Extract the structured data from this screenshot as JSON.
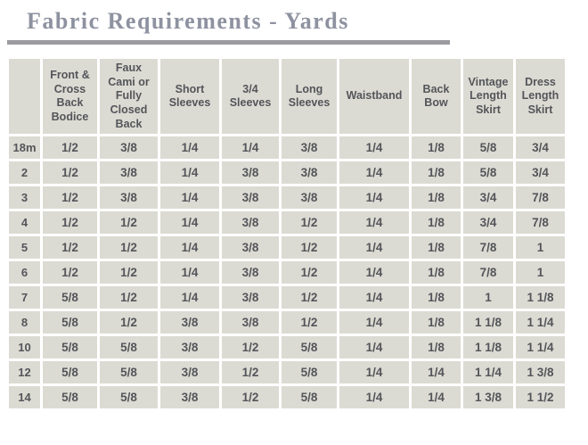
{
  "page": {
    "title": "Fabric Requirements - Yards"
  },
  "colors": {
    "page_bg": "#ffffff",
    "cell_bg": "#dcdbd3",
    "text": "#54555a",
    "title": "#8e92a0",
    "divider": "#9b9ba0"
  },
  "table": {
    "columns": [
      "",
      "Front & Cross Back Bodice",
      "Faux Cami or Fully Closed Back",
      "Short Sleeves",
      "3/4 Sleeves",
      "Long Sleeves",
      "Waistband",
      "Back Bow",
      "Vintage Length Skirt",
      "Dress Length Skirt"
    ],
    "rows": [
      {
        "label": "18m",
        "values": [
          "1/2",
          "3/8",
          "1/4",
          "1/4",
          "3/8",
          "1/4",
          "1/8",
          "5/8",
          "3/4"
        ]
      },
      {
        "label": "2",
        "values": [
          "1/2",
          "3/8",
          "1/4",
          "3/8",
          "3/8",
          "1/4",
          "1/8",
          "5/8",
          "3/4"
        ]
      },
      {
        "label": "3",
        "values": [
          "1/2",
          "3/8",
          "1/4",
          "3/8",
          "3/8",
          "1/4",
          "1/8",
          "3/4",
          "7/8"
        ]
      },
      {
        "label": "4",
        "values": [
          "1/2",
          "1/2",
          "1/4",
          "3/8",
          "1/2",
          "1/4",
          "1/8",
          "3/4",
          "7/8"
        ]
      },
      {
        "label": "5",
        "values": [
          "1/2",
          "1/2",
          "1/4",
          "3/8",
          "1/2",
          "1/4",
          "1/8",
          "7/8",
          "1"
        ]
      },
      {
        "label": "6",
        "values": [
          "1/2",
          "1/2",
          "1/4",
          "3/8",
          "1/2",
          "1/4",
          "1/8",
          "7/8",
          "1"
        ]
      },
      {
        "label": "7",
        "values": [
          "5/8",
          "1/2",
          "1/4",
          "3/8",
          "1/2",
          "1/4",
          "1/8",
          "1",
          "1 1/8"
        ]
      },
      {
        "label": "8",
        "values": [
          "5/8",
          "1/2",
          "3/8",
          "3/8",
          "1/2",
          "1/4",
          "1/8",
          "1 1/8",
          "1 1/4"
        ]
      },
      {
        "label": "10",
        "values": [
          "5/8",
          "5/8",
          "3/8",
          "1/2",
          "5/8",
          "1/4",
          "1/8",
          "1 1/8",
          "1 1/4"
        ]
      },
      {
        "label": "12",
        "values": [
          "5/8",
          "5/8",
          "3/8",
          "1/2",
          "5/8",
          "1/4",
          "1/4",
          "1 1/4",
          "1 3/8"
        ]
      },
      {
        "label": "14",
        "values": [
          "5/8",
          "5/8",
          "3/8",
          "1/2",
          "5/8",
          "1/4",
          "1/4",
          "1 3/8",
          "1 1/2"
        ]
      }
    ]
  }
}
